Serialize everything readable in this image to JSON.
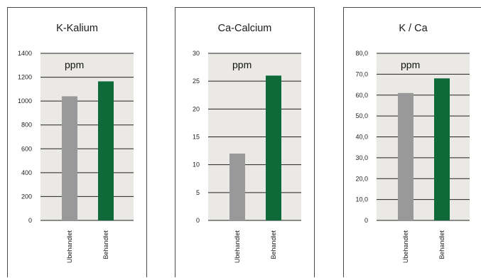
{
  "chart_data": [
    {
      "type": "bar",
      "title": "K-Kalium",
      "unit_label": "ppm",
      "categories": [
        "Ubehandlet",
        "Behandlet"
      ],
      "values": [
        1040,
        1165
      ],
      "ylim": [
        0,
        1400
      ],
      "yticks": [
        0,
        200,
        400,
        600,
        800,
        1000,
        1200,
        1400
      ],
      "ytick_labels": [
        "0",
        "200",
        "400",
        "600",
        "800",
        "1000",
        "1200",
        "1400"
      ],
      "grid": true
    },
    {
      "type": "bar",
      "title": "Ca-Calcium",
      "unit_label": "ppm",
      "categories": [
        "Ubehandlet",
        "Behandlet"
      ],
      "values": [
        12,
        26
      ],
      "ylim": [
        0,
        30
      ],
      "yticks": [
        0,
        5,
        10,
        15,
        20,
        25,
        30
      ],
      "ytick_labels": [
        "0",
        "5",
        "10",
        "15",
        "20",
        "25",
        "30"
      ],
      "grid": true
    },
    {
      "type": "bar",
      "title": "K / Ca",
      "unit_label": "ppm",
      "categories": [
        "Ubehandlet",
        "Behandlet"
      ],
      "values": [
        61,
        68
      ],
      "ylim": [
        0,
        80
      ],
      "yticks": [
        0,
        10,
        20,
        30,
        40,
        50,
        60,
        70,
        80
      ],
      "ytick_labels": [
        "0",
        "10,0",
        "20,0",
        "30,0",
        "40,0",
        "50,0",
        "60,0",
        "70,0",
        "80,0"
      ],
      "grid": true
    }
  ],
  "colors": {
    "plot_bg": "#ebe9e5",
    "grid": "#222222",
    "bar_untreated": "#999999",
    "bar_treated": "#0e6b39"
  }
}
